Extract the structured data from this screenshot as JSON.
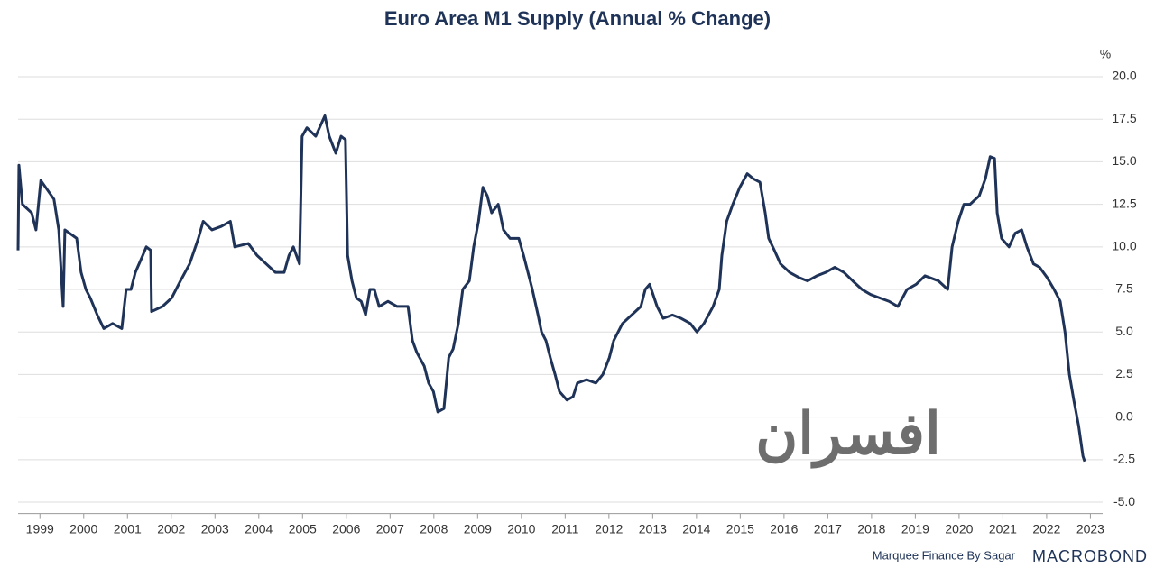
{
  "chart_data": {
    "type": "line",
    "title": "Euro Area M1 Supply (Annual % Change)",
    "y_unit": "%",
    "source": "Marquee Finance By Sagar",
    "brand": "MACROBOND",
    "watermark": "افسران",
    "grid": true,
    "xlim": [
      1999,
      2023.78
    ],
    "ylim": [
      -5.4,
      20.8
    ],
    "yticks": [
      {
        "value": 20,
        "label": "20.0"
      },
      {
        "value": 17.5,
        "label": "17.5"
      },
      {
        "value": 15,
        "label": "15.0"
      },
      {
        "value": 12.5,
        "label": "12.5"
      },
      {
        "value": 10,
        "label": "10.0"
      },
      {
        "value": 7.5,
        "label": "7.5"
      },
      {
        "value": 5,
        "label": "5.0"
      },
      {
        "value": 2.5,
        "label": "2.5"
      },
      {
        "value": 0,
        "label": "0.0"
      },
      {
        "value": -2.5,
        "label": "-2.5"
      },
      {
        "value": -5,
        "label": "-5.0"
      }
    ],
    "xticks": [
      {
        "value": 1999.5,
        "label": "1999"
      },
      {
        "value": 2000.5,
        "label": "2000"
      },
      {
        "value": 2001.5,
        "label": "2001"
      },
      {
        "value": 2002.5,
        "label": "2002"
      },
      {
        "value": 2003.5,
        "label": "2003"
      },
      {
        "value": 2004.5,
        "label": "2004"
      },
      {
        "value": 2005.5,
        "label": "2005"
      },
      {
        "value": 2006.5,
        "label": "2006"
      },
      {
        "value": 2007.5,
        "label": "2007"
      },
      {
        "value": 2008.5,
        "label": "2008"
      },
      {
        "value": 2009.5,
        "label": "2009"
      },
      {
        "value": 2010.5,
        "label": "2010"
      },
      {
        "value": 2011.5,
        "label": "2011"
      },
      {
        "value": 2012.5,
        "label": "2012"
      },
      {
        "value": 2013.5,
        "label": "2013"
      },
      {
        "value": 2014.5,
        "label": "2014"
      },
      {
        "value": 2015.5,
        "label": "2015"
      },
      {
        "value": 2016.5,
        "label": "2016"
      },
      {
        "value": 2017.5,
        "label": "2017"
      },
      {
        "value": 2018.5,
        "label": "2018"
      },
      {
        "value": 2019.5,
        "label": "2019"
      },
      {
        "value": 2020.5,
        "label": "2020"
      },
      {
        "value": 2021.5,
        "label": "2021"
      },
      {
        "value": 2022.5,
        "label": "2022"
      },
      {
        "value": 2023.5,
        "label": "2023"
      }
    ],
    "x": [
      1999.0,
      1999.02,
      1999.1,
      1999.31,
      1999.41,
      1999.52,
      1999.82,
      1999.93,
      2000.03,
      2000.07,
      2000.34,
      2000.44,
      2000.55,
      2000.65,
      2000.81,
      2000.96,
      2001.16,
      2001.37,
      2001.47,
      2001.58,
      2001.68,
      2001.85,
      2001.93,
      2002.03,
      2002.05,
      2002.3,
      2002.51,
      2002.71,
      2002.92,
      2003.12,
      2003.23,
      2003.43,
      2003.64,
      2003.85,
      2003.95,
      2004.26,
      2004.46,
      2004.67,
      2004.88,
      2005.08,
      2005.19,
      2005.29,
      2005.43,
      2005.49,
      2005.6,
      2005.8,
      2006.01,
      2006.11,
      2006.26,
      2006.38,
      2006.48,
      2006.53,
      2006.63,
      2006.73,
      2006.84,
      2006.94,
      2007.04,
      2007.14,
      2007.25,
      2007.45,
      2007.66,
      2007.91,
      2008.01,
      2008.11,
      2008.28,
      2008.38,
      2008.49,
      2008.59,
      2008.73,
      2008.84,
      2008.94,
      2009.06,
      2009.16,
      2009.31,
      2009.41,
      2009.52,
      2009.62,
      2009.72,
      2009.82,
      2009.97,
      2010.09,
      2010.24,
      2010.44,
      2010.55,
      2010.65,
      2010.75,
      2010.88,
      2010.96,
      2011.06,
      2011.16,
      2011.27,
      2011.37,
      2011.54,
      2011.68,
      2011.78,
      2011.99,
      2012.2,
      2012.36,
      2012.51,
      2012.61,
      2012.81,
      2013.02,
      2013.23,
      2013.33,
      2013.43,
      2013.6,
      2013.74,
      2013.95,
      2014.15,
      2014.36,
      2014.51,
      2014.67,
      2014.88,
      2015.02,
      2015.08,
      2015.19,
      2015.33,
      2015.49,
      2015.66,
      2015.8,
      2015.95,
      2016.07,
      2016.15,
      2016.28,
      2016.42,
      2016.63,
      2016.84,
      2017.04,
      2017.25,
      2017.45,
      2017.66,
      2017.87,
      2018.07,
      2018.28,
      2018.48,
      2018.69,
      2018.9,
      2019.1,
      2019.31,
      2019.52,
      2019.72,
      2020.03,
      2020.24,
      2020.34,
      2020.48,
      2020.61,
      2020.75,
      2020.96,
      2021.1,
      2021.21,
      2021.31,
      2021.37,
      2021.47,
      2021.64,
      2021.78,
      2021.93,
      2022.05,
      2022.2,
      2022.34,
      2022.51,
      2022.67,
      2022.81,
      2022.92,
      2023.02,
      2023.12,
      2023.23,
      2023.33,
      2023.37
    ],
    "series": [
      {
        "name": "Euro Area M1",
        "color": "#1f3358",
        "values": [
          9.8,
          14.8,
          12.5,
          12.0,
          11.0,
          13.9,
          12.8,
          11.0,
          6.5,
          11.0,
          10.5,
          8.5,
          7.5,
          7.0,
          6.0,
          5.2,
          5.5,
          5.2,
          7.5,
          7.5,
          8.5,
          9.5,
          10.0,
          9.8,
          6.2,
          6.5,
          7.0,
          8.0,
          9.0,
          10.5,
          11.5,
          11.0,
          11.2,
          11.5,
          10.0,
          10.2,
          9.5,
          9.0,
          8.5,
          8.5,
          9.5,
          10.0,
          9.0,
          16.5,
          17.0,
          16.5,
          17.7,
          16.5,
          15.5,
          16.5,
          16.3,
          9.5,
          8.0,
          7.0,
          6.8,
          6.0,
          7.5,
          7.5,
          6.5,
          6.8,
          6.5,
          6.5,
          4.5,
          3.8,
          3.0,
          2.0,
          1.5,
          0.3,
          0.5,
          3.5,
          4.0,
          5.5,
          7.5,
          8.0,
          10.0,
          11.5,
          13.5,
          13.0,
          12.0,
          12.5,
          11.0,
          10.5,
          10.5,
          9.5,
          8.5,
          7.5,
          6.0,
          5.0,
          4.5,
          3.5,
          2.5,
          1.5,
          1.0,
          1.2,
          2.0,
          2.2,
          2.0,
          2.5,
          3.5,
          4.5,
          5.5,
          6.0,
          6.5,
          7.5,
          7.8,
          6.5,
          5.8,
          6.0,
          5.8,
          5.5,
          5.0,
          5.5,
          6.5,
          7.5,
          9.5,
          11.5,
          12.5,
          13.5,
          14.3,
          14.0,
          13.8,
          12.0,
          10.5,
          9.8,
          9.0,
          8.5,
          8.2,
          8.0,
          8.3,
          8.5,
          8.8,
          8.5,
          8.0,
          7.5,
          7.2,
          7.0,
          6.8,
          6.5,
          7.5,
          7.8,
          8.3,
          8.0,
          7.5,
          10.0,
          11.5,
          12.5,
          12.5,
          13.0,
          14.0,
          15.3,
          15.2,
          12.0,
          10.5,
          10.0,
          10.8,
          11.0,
          10.0,
          9.0,
          8.8,
          8.2,
          7.5,
          6.8,
          5.0,
          2.5,
          1.0,
          -0.5,
          -2.3,
          -2.6
        ]
      }
    ]
  }
}
